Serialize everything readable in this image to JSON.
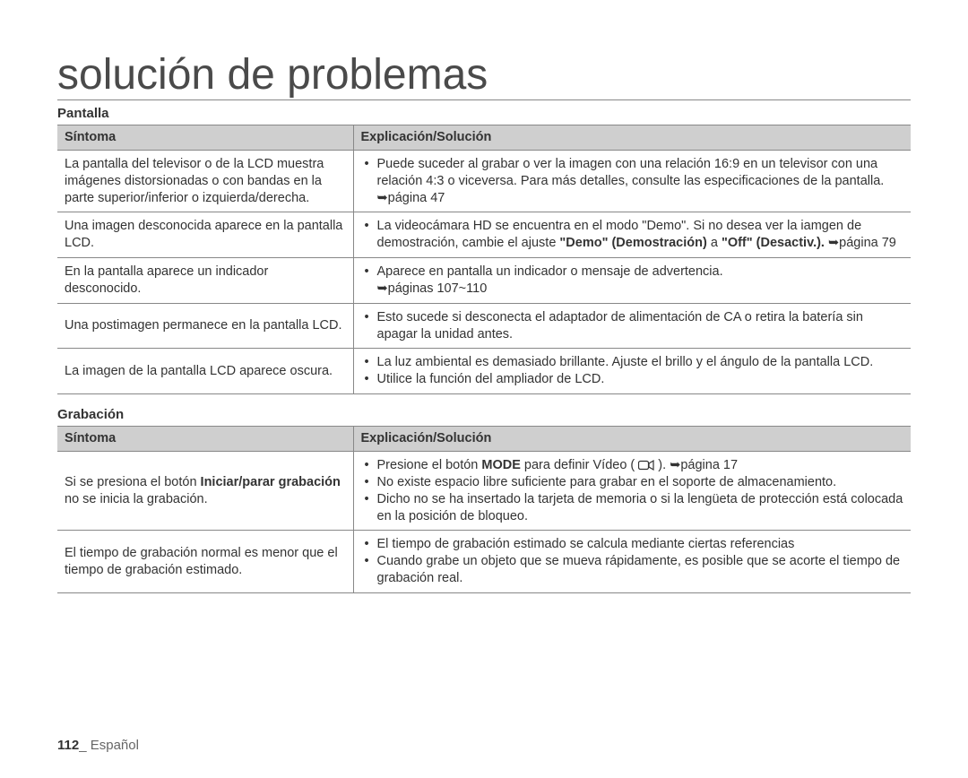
{
  "title": "solución de problemas",
  "sections": [
    {
      "label": "Pantalla",
      "headers": {
        "symptom": "Síntoma",
        "solution": "Explicación/Solución"
      },
      "rows": [
        {
          "symptom_html": "La pantalla del televisor o de la LCD muestra imágenes distorsionadas o con bandas en la parte superior/inferior o izquierda/derecha.",
          "solution_html": "<ul class='bullets'><li>Puede suceder al grabar o ver la imagen con una relación 16:9 en un televisor con una relación 4:3 o viceversa. Para más detalles, consulte las especificaciones de la pantalla. <span class='arrow'>➥</span>página 47</li></ul>"
        },
        {
          "symptom_html": "Una imagen desconocida aparece en la pantalla LCD.",
          "solution_html": "<ul class='bullets'><li>La videocámara HD se encuentra en el modo \"Demo\". Si no desea ver la iamgen de demostración, cambie el ajuste <b>\"Demo\" (Demostración)</b> a <b>\"Off\" (Desactiv.).</b> <span class='arrow'>➥</span>página 79</li></ul>"
        },
        {
          "symptom_html": "En la pantalla aparece un indicador desconocido.",
          "solution_html": "<ul class='bullets'><li>Aparece en pantalla un indicador o mensaje de advertencia.<br><span class='arrow'>➥</span>páginas 107~110</li></ul>"
        },
        {
          "symptom_html": "Una postimagen permanece en la pantalla LCD.",
          "solution_html": "<ul class='bullets'><li>Esto sucede si desconecta el adaptador de alimentación de CA o retira la batería sin apagar la unidad antes.</li></ul>"
        },
        {
          "symptom_html": "La imagen de la pantalla LCD aparece oscura.",
          "solution_html": "<ul class='bullets'><li>La luz ambiental es demasiado brillante. Ajuste el brillo y el ángulo de la pantalla LCD.</li><li>Utilice la función del ampliador de LCD.</li></ul>"
        }
      ]
    },
    {
      "label": "Grabación",
      "headers": {
        "symptom": "Síntoma",
        "solution": "Explicación/Solución"
      },
      "rows": [
        {
          "symptom_html": "Si se presiona el botón <b>Iniciar/parar grabación</b> no se inicia la grabación.",
          "solution_html": "<ul class='bullets'><li>Presione el botón <b>MODE</b> para definir Vídeo ( <svg class='mode-icon' width='18' height='14' viewBox='0 0 18 14'><rect x='0.5' y='2.5' width='11' height='9' rx='2' fill='none' stroke='#333' stroke-width='1.2'/><path d='M12 5 L17 2 L17 12 L12 9 Z' fill='none' stroke='#333' stroke-width='1.2'/></svg> ). <span class='arrow'>➥</span>página 17</li><li>No existe espacio libre suficiente para grabar en el soporte de almacenamiento.</li><li>Dicho no se ha insertado la tarjeta de memoria o si la lengüeta de protección está colocada en la posición de bloqueo.</li></ul>"
        },
        {
          "symptom_html": "El tiempo de grabación normal es menor que el tiempo de grabación estimado.",
          "solution_html": "<ul class='bullets'><li>El tiempo de grabación estimado se calcula mediante ciertas referencias</li><li>Cuando grabe un objeto que se mueva rápidamente, es posible que se acorte el tiempo de grabación real.</li></ul>"
        }
      ]
    }
  ],
  "footer": {
    "page_number": "112",
    "separator": "_ ",
    "language": "Español"
  },
  "colors": {
    "header_bg": "#cfcfcf",
    "border": "#888888",
    "text": "#333333",
    "title": "#4a4a4a"
  }
}
